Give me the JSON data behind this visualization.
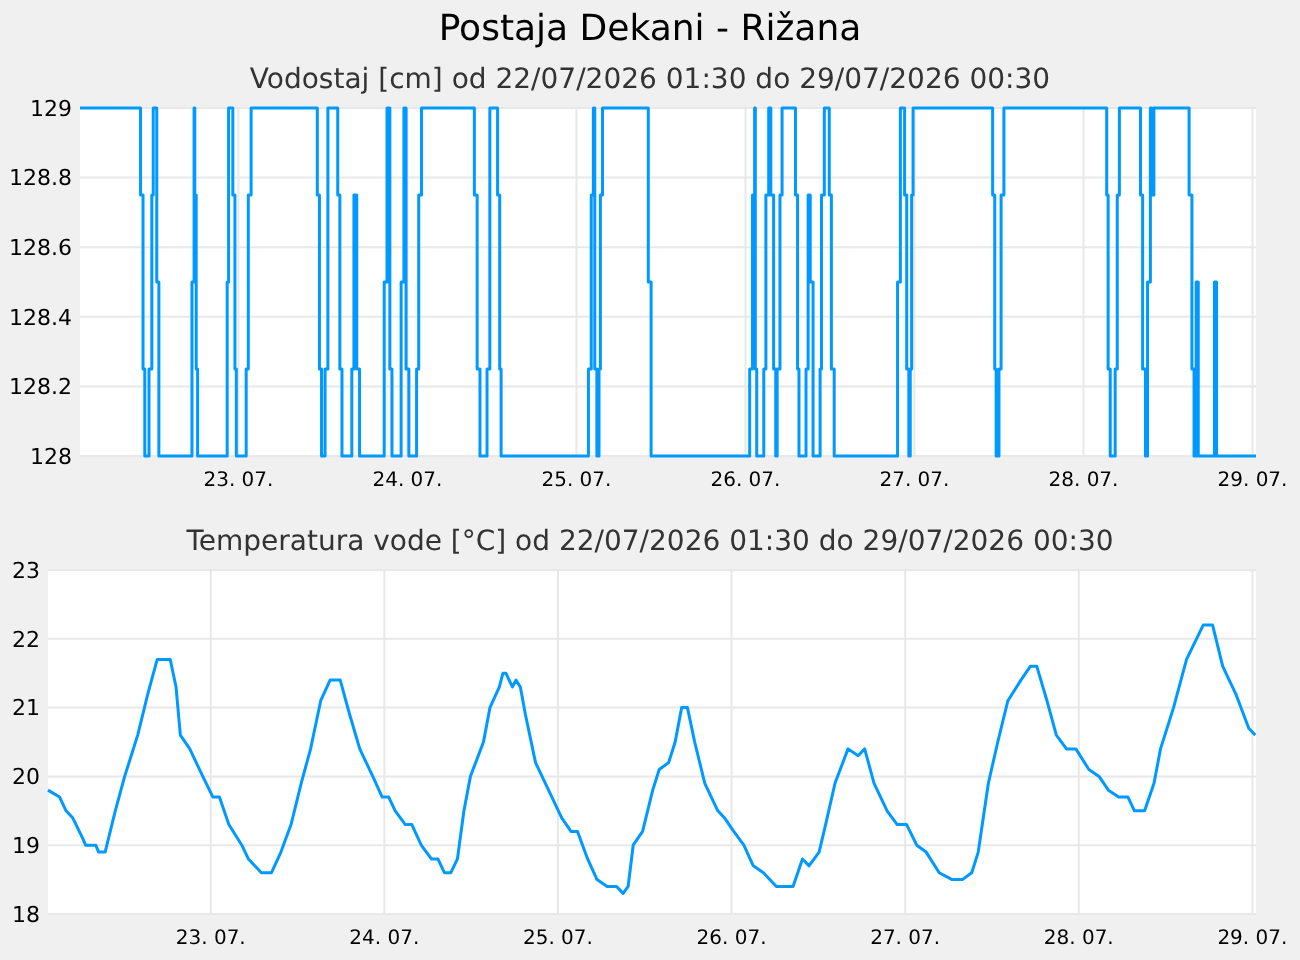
{
  "chart_data": [
    {
      "type": "step",
      "title": "Postaja Dekani - Rižana",
      "subtitle": "Vodostaj [cm] od 22/07/2026 01:30 do 29/07/2026 00:30",
      "grid": true,
      "xlim": [
        "2026-07-22T01:30",
        "2026-07-29T00:30"
      ],
      "xticks": [
        {
          "value": "2026-07-23",
          "label": "23. 07."
        },
        {
          "value": "2026-07-24",
          "label": "24. 07."
        },
        {
          "value": "2026-07-25",
          "label": "25. 07."
        },
        {
          "value": "2026-07-26",
          "label": "26. 07."
        },
        {
          "value": "2026-07-27",
          "label": "27. 07."
        },
        {
          "value": "2026-07-28",
          "label": "28. 07."
        },
        {
          "value": "2026-07-29",
          "label": "29. 07."
        }
      ],
      "ylim": [
        128,
        129
      ],
      "yticks": [
        128,
        128.2,
        128.4,
        128.6,
        128.8,
        129
      ],
      "series": [
        {
          "color": "#0099ff",
          "x": [
            "2026-07-22T01:30",
            "2026-07-22T10:06",
            "2026-07-22T10:27",
            "2026-07-22T10:42",
            "2026-07-22T11:18",
            "2026-07-22T11:42",
            "2026-07-22T11:54",
            "2026-07-22T12:24",
            "2026-07-22T12:42",
            "2026-07-22T17:24",
            "2026-07-22T17:42",
            "2026-07-22T17:48",
            "2026-07-22T18:00",
            "2026-07-22T18:12",
            "2026-07-22T22:24",
            "2026-07-22T22:36",
            "2026-07-22T23:12",
            "2026-07-22T23:30",
            "2026-07-22T23:42",
            "2026-07-23T01:06",
            "2026-07-23T01:24",
            "2026-07-23T01:48",
            "2026-07-23T11:12",
            "2026-07-23T11:30",
            "2026-07-23T11:48",
            "2026-07-23T12:18",
            "2026-07-23T12:42",
            "2026-07-23T14:06",
            "2026-07-23T14:24",
            "2026-07-23T14:42",
            "2026-07-23T16:06",
            "2026-07-23T16:24",
            "2026-07-23T16:48",
            "2026-07-23T17:12",
            "2026-07-23T20:42",
            "2026-07-23T21:06",
            "2026-07-23T21:30",
            "2026-07-23T21:48",
            "2026-07-23T23:06",
            "2026-07-23T23:30",
            "2026-07-23T23:48",
            "2026-07-24T00:12",
            "2026-07-24T01:18",
            "2026-07-24T01:36",
            "2026-07-24T02:00",
            "2026-07-24T09:30",
            "2026-07-24T09:54",
            "2026-07-24T10:18",
            "2026-07-24T11:18",
            "2026-07-24T11:42",
            "2026-07-24T12:48",
            "2026-07-24T13:06",
            "2026-07-24T13:18",
            "2026-07-25T01:42",
            "2026-07-25T02:06",
            "2026-07-25T02:24",
            "2026-07-25T02:36",
            "2026-07-25T02:54",
            "2026-07-25T03:12",
            "2026-07-25T03:24",
            "2026-07-25T03:42",
            "2026-07-25T10:12",
            "2026-07-25T10:36",
            "2026-07-26T00:36",
            "2026-07-26T01:00",
            "2026-07-26T01:18",
            "2026-07-26T01:24",
            "2026-07-26T01:36",
            "2026-07-26T02:36",
            "2026-07-26T02:54",
            "2026-07-26T03:18",
            "2026-07-26T03:36",
            "2026-07-26T04:00",
            "2026-07-26T04:18",
            "2026-07-26T04:30",
            "2026-07-26T04:54",
            "2026-07-26T05:12",
            "2026-07-26T07:06",
            "2026-07-26T07:24",
            "2026-07-26T07:36",
            "2026-07-26T08:36",
            "2026-07-26T08:54",
            "2026-07-26T09:12",
            "2026-07-26T09:36",
            "2026-07-26T10:36",
            "2026-07-26T10:48",
            "2026-07-26T11:12",
            "2026-07-26T11:54",
            "2026-07-26T12:12",
            "2026-07-26T12:36",
            "2026-07-26T21:36",
            "2026-07-26T22:00",
            "2026-07-26T22:36",
            "2026-07-26T22:54",
            "2026-07-26T23:12",
            "2026-07-26T23:24",
            "2026-07-26T23:36",
            "2026-07-26T23:48",
            "2026-07-27T11:06",
            "2026-07-27T11:24",
            "2026-07-27T11:36",
            "2026-07-27T12:00",
            "2026-07-27T12:18",
            "2026-07-27T12:42",
            "2026-07-28T03:18",
            "2026-07-28T03:30",
            "2026-07-28T03:48",
            "2026-07-28T04:30",
            "2026-07-28T04:48",
            "2026-07-28T05:06",
            "2026-07-28T08:06",
            "2026-07-28T08:24",
            "2026-07-28T08:48",
            "2026-07-28T09:06",
            "2026-07-28T09:30",
            "2026-07-28T09:42",
            "2026-07-28T10:00",
            "2026-07-28T15:00",
            "2026-07-28T15:24",
            "2026-07-28T15:42",
            "2026-07-28T16:00",
            "2026-07-28T16:18",
            "2026-07-28T18:36",
            "2026-07-28T18:54",
            "2026-07-29T00:30"
          ],
          "values": [
            129,
            128.75,
            128.25,
            128,
            128.25,
            128.75,
            129,
            128.5,
            128,
            128.5,
            129,
            128.75,
            128.25,
            128,
            128.5,
            129,
            128.75,
            128.25,
            128,
            128.25,
            128.75,
            129,
            128.75,
            128.25,
            128,
            128.25,
            129,
            128.75,
            128.25,
            128,
            128.25,
            128.75,
            128.25,
            128,
            128.5,
            129,
            128.25,
            128,
            128.5,
            129,
            128.25,
            128,
            128.25,
            128.75,
            129,
            128.75,
            128.25,
            128,
            128.25,
            129,
            128.75,
            128.25,
            128,
            128.25,
            128.75,
            129,
            128.25,
            128,
            128.25,
            128.75,
            129,
            128.5,
            128,
            128.25,
            128.75,
            129,
            128.25,
            128,
            128.25,
            128.75,
            129,
            128.75,
            128.25,
            128,
            128.25,
            128.75,
            129,
            128.75,
            128.25,
            128,
            128.25,
            128.75,
            128.5,
            128,
            128.25,
            128.75,
            129,
            128.75,
            128.25,
            128,
            128.5,
            129,
            128.75,
            128.25,
            128,
            128.25,
            128.75,
            129,
            128.75,
            128.25,
            128,
            128.25,
            128.75,
            129,
            128.75,
            128.25,
            128,
            128.25,
            128.75,
            129,
            128.75,
            128.25,
            128,
            128.5,
            129,
            128.75,
            129,
            128.75,
            128.25,
            128,
            128.5,
            128,
            128.5,
            128,
            128
          ]
        }
      ]
    },
    {
      "type": "line",
      "title": "Temperatura vode [°C] od 22/07/2026 01:30 do 29/07/2026 00:30",
      "grid": true,
      "xlim": [
        "2026-07-22T01:30",
        "2026-07-29T00:30"
      ],
      "xticks": [
        {
          "value": "2026-07-23",
          "label": "23. 07."
        },
        {
          "value": "2026-07-24",
          "label": "24. 07."
        },
        {
          "value": "2026-07-25",
          "label": "25. 07."
        },
        {
          "value": "2026-07-26",
          "label": "26. 07."
        },
        {
          "value": "2026-07-27",
          "label": "27. 07."
        },
        {
          "value": "2026-07-28",
          "label": "28. 07."
        },
        {
          "value": "2026-07-29",
          "label": "29. 07."
        }
      ],
      "ylim": [
        18,
        23
      ],
      "yticks": [
        18,
        19,
        20,
        21,
        22,
        23
      ],
      "series": [
        {
          "color": "#0099ff",
          "x": [
            "2026-07-22T01:30",
            "2026-07-22T03:06",
            "2026-07-22T04:00",
            "2026-07-22T04:54",
            "2026-07-22T06:18",
            "2026-07-22T06:42",
            "2026-07-22T08:06",
            "2026-07-22T08:30",
            "2026-07-22T09:24",
            "2026-07-22T10:48",
            "2026-07-22T12:06",
            "2026-07-22T13:54",
            "2026-07-22T15:18",
            "2026-07-22T16:36",
            "2026-07-22T18:24",
            "2026-07-22T19:12",
            "2026-07-22T19:48",
            "2026-07-22T21:06",
            "2026-07-22T22:54",
            "2026-07-23T00:18",
            "2026-07-23T01:12",
            "2026-07-23T02:30",
            "2026-07-23T04:18",
            "2026-07-23T05:12",
            "2026-07-23T07:00",
            "2026-07-23T08:24",
            "2026-07-23T09:42",
            "2026-07-23T11:06",
            "2026-07-23T12:30",
            "2026-07-23T13:48",
            "2026-07-23T15:12",
            "2026-07-23T16:30",
            "2026-07-23T17:54",
            "2026-07-23T19:12",
            "2026-07-23T20:36",
            "2026-07-23T22:24",
            "2026-07-23T23:42",
            "2026-07-24T00:36",
            "2026-07-24T01:30",
            "2026-07-24T02:54",
            "2026-07-24T03:48",
            "2026-07-24T05:06",
            "2026-07-24T06:30",
            "2026-07-24T07:24",
            "2026-07-24T08:18",
            "2026-07-24T09:12",
            "2026-07-24T10:06",
            "2026-07-24T11:00",
            "2026-07-24T11:54",
            "2026-07-24T13:42",
            "2026-07-24T14:36",
            "2026-07-24T15:54",
            "2026-07-24T16:24",
            "2026-07-24T16:48",
            "2026-07-24T17:42",
            "2026-07-24T18:12",
            "2026-07-24T18:48",
            "2026-07-24T19:30",
            "2026-07-24T20:54",
            "2026-07-24T22:42",
            "2026-07-25T00:30",
            "2026-07-25T01:48",
            "2026-07-25T02:42",
            "2026-07-25T04:06",
            "2026-07-25T05:24",
            "2026-07-25T06:48",
            "2026-07-25T08:06",
            "2026-07-25T09:00",
            "2026-07-25T09:42",
            "2026-07-25T10:24",
            "2026-07-25T11:42",
            "2026-07-25T13:06",
            "2026-07-25T14:00",
            "2026-07-25T15:18",
            "2026-07-25T16:12",
            "2026-07-25T17:06",
            "2026-07-25T17:54",
            "2026-07-25T18:54",
            "2026-07-25T20:18",
            "2026-07-25T22:06",
            "2026-07-25T23:00",
            "2026-07-26T00:18",
            "2026-07-26T01:42",
            "2026-07-26T03:00",
            "2026-07-26T04:24",
            "2026-07-26T06:12",
            "2026-07-26T08:30",
            "2026-07-26T09:48",
            "2026-07-26T10:42",
            "2026-07-26T12:06",
            "2026-07-26T13:00",
            "2026-07-26T14:18",
            "2026-07-26T16:06",
            "2026-07-26T17:30",
            "2026-07-26T18:24",
            "2026-07-26T19:42",
            "2026-07-26T21:30",
            "2026-07-26T22:54",
            "2026-07-27T00:12",
            "2026-07-27T01:36",
            "2026-07-27T02:54",
            "2026-07-27T04:42",
            "2026-07-27T06:30",
            "2026-07-27T07:54",
            "2026-07-27T09:12",
            "2026-07-27T10:06",
            "2026-07-27T11:30",
            "2026-07-27T12:48",
            "2026-07-27T14:12",
            "2026-07-27T16:00",
            "2026-07-27T17:18",
            "2026-07-27T18:12",
            "2026-07-27T19:36",
            "2026-07-27T20:54",
            "2026-07-27T22:18",
            "2026-07-27T23:36",
            "2026-07-28T01:24",
            "2026-07-28T02:48",
            "2026-07-28T04:06",
            "2026-07-28T05:30",
            "2026-07-28T06:48",
            "2026-07-28T07:42",
            "2026-07-28T09:06",
            "2026-07-28T10:24",
            "2026-07-28T11:18",
            "2026-07-28T13:06",
            "2026-07-28T14:54",
            "2026-07-28T17:12",
            "2026-07-28T18:30",
            "2026-07-28T19:54",
            "2026-07-28T21:42",
            "2026-07-28T23:30",
            "2026-07-29T00:24"
          ],
          "values": [
            19.8,
            19.7,
            19.5,
            19.4,
            19.1,
            19.0,
            19.0,
            18.9,
            18.9,
            19.5,
            20.0,
            20.6,
            21.2,
            21.7,
            21.7,
            21.3,
            20.6,
            20.4,
            20.0,
            19.7,
            19.7,
            19.3,
            19.0,
            18.8,
            18.6,
            18.6,
            18.9,
            19.3,
            19.9,
            20.4,
            21.1,
            21.4,
            21.4,
            20.9,
            20.4,
            20.0,
            19.7,
            19.7,
            19.5,
            19.3,
            19.3,
            19.0,
            18.8,
            18.8,
            18.6,
            18.6,
            18.8,
            19.5,
            20.0,
            20.5,
            21.0,
            21.3,
            21.5,
            21.5,
            21.3,
            21.4,
            21.3,
            20.9,
            20.2,
            19.8,
            19.4,
            19.2,
            19.2,
            18.8,
            18.5,
            18.4,
            18.4,
            18.3,
            18.4,
            19.0,
            19.2,
            19.8,
            20.1,
            20.2,
            20.5,
            21.0,
            21.0,
            20.5,
            19.9,
            19.5,
            19.4,
            19.2,
            19.0,
            18.7,
            18.6,
            18.4,
            18.4,
            18.8,
            18.7,
            18.9,
            19.3,
            19.9,
            20.4,
            20.3,
            20.4,
            19.9,
            19.5,
            19.3,
            19.3,
            19.0,
            18.9,
            18.6,
            18.5,
            18.5,
            18.6,
            18.9,
            19.9,
            20.5,
            21.1,
            21.4,
            21.6,
            21.6,
            21.1,
            20.6,
            20.4,
            20.4,
            20.1,
            20.0,
            19.8,
            19.7,
            19.7,
            19.5,
            19.5,
            19.9,
            20.4,
            21.0,
            21.7,
            22.2,
            22.2,
            21.6,
            21.2,
            20.7,
            20.6
          ]
        }
      ]
    }
  ]
}
